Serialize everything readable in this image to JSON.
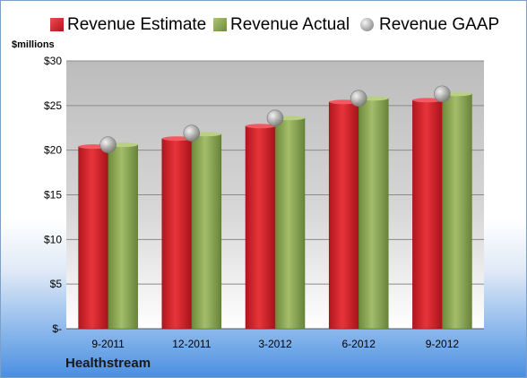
{
  "legend": {
    "estimate": "Revenue Estimate",
    "actual": "Revenue Actual",
    "gaap": "Revenue GAAP"
  },
  "units_label": "$millions",
  "company": "Healthstream",
  "colors": {
    "estimate": "#cc1f27",
    "actual": "#8aa454",
    "gaap": "#a8a8a8",
    "plot_background": "#c9c9c9"
  },
  "chart_data": {
    "type": "bar",
    "categories": [
      "9-2011",
      "12-2011",
      "3-2012",
      "6-2012",
      "9-2012"
    ],
    "series": [
      {
        "name": "Revenue Estimate",
        "values": [
          20.4,
          21.3,
          22.7,
          25.4,
          25.6
        ]
      },
      {
        "name": "Revenue Actual",
        "values": [
          20.6,
          21.8,
          23.6,
          25.8,
          26.3
        ]
      },
      {
        "name": "Revenue GAAP",
        "values": [
          20.6,
          21.9,
          23.6,
          25.8,
          26.3
        ]
      }
    ],
    "y_ticks": [
      "$-",
      "$5",
      "$10",
      "$15",
      "$20",
      "$25",
      "$30"
    ],
    "ylim": [
      0,
      30
    ],
    "grid": true,
    "legend_position": "top"
  }
}
